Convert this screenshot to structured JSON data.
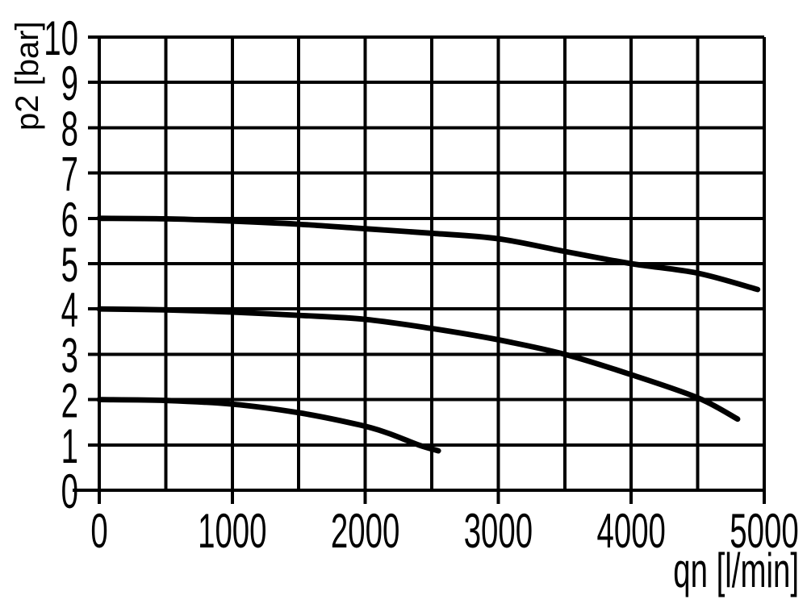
{
  "chart_data": {
    "type": "line",
    "title": "",
    "xlabel": "qn [l/min]",
    "ylabel": "p2 [bar]",
    "xlim": [
      0,
      5000
    ],
    "ylim": [
      0,
      10
    ],
    "x_grid_step": 500,
    "x_labeled_tick_step": 1000,
    "y_grid_step": 1,
    "grid": true,
    "legend_position": "none",
    "background_color": "#ffffff",
    "grid_color": "#000000",
    "curve_color": "#000000",
    "x_ticks": [
      0,
      1000,
      2000,
      3000,
      4000,
      5000
    ],
    "y_ticks": [
      0,
      1,
      2,
      3,
      4,
      5,
      6,
      7,
      8,
      9,
      10
    ],
    "series": [
      {
        "id": "curve-6bar",
        "name": "outlet pressure curve starting at 6 bar",
        "points": [
          [
            0,
            6.0
          ],
          [
            500,
            5.99
          ],
          [
            1000,
            5.94
          ],
          [
            1500,
            5.87
          ],
          [
            2000,
            5.77
          ],
          [
            2500,
            5.67
          ],
          [
            3000,
            5.55
          ],
          [
            3500,
            5.27
          ],
          [
            4000,
            5.0
          ],
          [
            4500,
            4.79
          ],
          [
            4950,
            4.43
          ]
        ]
      },
      {
        "id": "curve-4bar",
        "name": "outlet pressure curve starting at 4 bar",
        "points": [
          [
            0,
            4.0
          ],
          [
            500,
            3.98
          ],
          [
            1000,
            3.93
          ],
          [
            1500,
            3.86
          ],
          [
            2000,
            3.77
          ],
          [
            2500,
            3.57
          ],
          [
            3000,
            3.32
          ],
          [
            3500,
            3.0
          ],
          [
            4000,
            2.55
          ],
          [
            4500,
            2.04
          ],
          [
            4800,
            1.57
          ]
        ]
      },
      {
        "id": "curve-2bar",
        "name": "outlet pressure curve starting at 2 bar",
        "points": [
          [
            0,
            2.0
          ],
          [
            500,
            1.98
          ],
          [
            1000,
            1.9
          ],
          [
            1500,
            1.71
          ],
          [
            1960,
            1.44
          ],
          [
            2170,
            1.26
          ],
          [
            2400,
            1.0
          ],
          [
            2550,
            0.87
          ]
        ]
      }
    ]
  }
}
